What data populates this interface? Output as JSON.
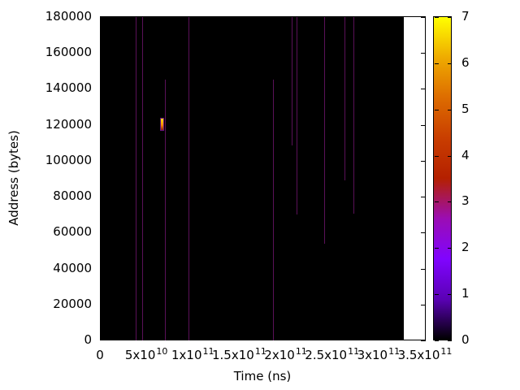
{
  "chart_data": {
    "type": "heatmap",
    "title": "",
    "xlabel": "Time (ns)",
    "ylabel": "Address (bytes)",
    "grid": false,
    "x_axis": {
      "min": 0,
      "max": 350000000000.0,
      "ticks": [
        {
          "t": 0,
          "label": "0",
          "exp": ""
        },
        {
          "t": 50000000000.0,
          "label": "5x10",
          "exp": "10"
        },
        {
          "t": 100000000000.0,
          "label": "1x10",
          "exp": "11"
        },
        {
          "t": 150000000000.0,
          "label": "1.5x10",
          "exp": "11"
        },
        {
          "t": 200000000000.0,
          "label": "2x10",
          "exp": "11"
        },
        {
          "t": 250000000000.0,
          "label": "2.5x10",
          "exp": "11"
        },
        {
          "t": 300000000000.0,
          "label": "3x10",
          "exp": "11"
        },
        {
          "t": 350000000000.0,
          "label": "3.5x10",
          "exp": "11"
        }
      ]
    },
    "y_axis": {
      "min": 0,
      "max": 180000,
      "ticks": [
        {
          "a": 0,
          "label": "0"
        },
        {
          "a": 20000,
          "label": "20000"
        },
        {
          "a": 40000,
          "label": "40000"
        },
        {
          "a": 60000,
          "label": "60000"
        },
        {
          "a": 80000,
          "label": "80000"
        },
        {
          "a": 100000,
          "label": "100000"
        },
        {
          "a": 120000,
          "label": "120000"
        },
        {
          "a": 140000,
          "label": "140000"
        },
        {
          "a": 160000,
          "label": "160000"
        },
        {
          "a": 180000,
          "label": "180000"
        }
      ]
    },
    "colorbar": {
      "min": 0,
      "max": 7,
      "ticks": [
        {
          "v": 0,
          "label": "0"
        },
        {
          "v": 1,
          "label": "1"
        },
        {
          "v": 2,
          "label": "2"
        },
        {
          "v": 3,
          "label": "3"
        },
        {
          "v": 4,
          "label": "4"
        },
        {
          "v": 5,
          "label": "5"
        },
        {
          "v": 6,
          "label": "6"
        },
        {
          "v": 7,
          "label": "7"
        }
      ],
      "palette": [
        {
          "pos": 0,
          "color": "#000000"
        },
        {
          "pos": 0.125,
          "color": "#5a01b4"
        },
        {
          "pos": 0.25,
          "color": "#8004ff"
        },
        {
          "pos": 0.375,
          "color": "#9b0db4"
        },
        {
          "pos": 0.5,
          "color": "#b42000"
        },
        {
          "pos": 0.625,
          "color": "#c93e00"
        },
        {
          "pos": 0.75,
          "color": "#dd6c00"
        },
        {
          "pos": 0.875,
          "color": "#efab00"
        },
        {
          "pos": 1,
          "color": "#ffff00"
        }
      ]
    },
    "background_value": 0,
    "background_color": "#000000",
    "data_extent_ns": 327250000000.0,
    "event_color": "#5a1158",
    "events": [
      {
        "t": 37600000000.0,
        "addr_lo": 0,
        "addr_hi": 180000,
        "value": 1
      },
      {
        "t": 44600000000.0,
        "addr_lo": 0,
        "addr_hi": 180000,
        "value": 1
      },
      {
        "t": 69100000000.0,
        "addr_lo": 0,
        "addr_hi": 145000,
        "value": 1
      },
      {
        "t": 94500000000.0,
        "addr_lo": 0,
        "addr_hi": 180000,
        "value": 1
      },
      {
        "t": 185500000000.0,
        "addr_lo": 0,
        "addr_hi": 145000,
        "value": 1
      },
      {
        "t": 205600000000.0,
        "addr_lo": 108500,
        "addr_hi": 180000,
        "value": 1
      },
      {
        "t": 210900000000.0,
        "addr_lo": 70000,
        "addr_hi": 180000,
        "value": 1
      },
      {
        "t": 240600000000.0,
        "addr_lo": 54000,
        "addr_hi": 180000,
        "value": 1
      },
      {
        "t": 262500000000.0,
        "addr_lo": 89000,
        "addr_hi": 180000,
        "value": 1
      },
      {
        "t": 272100000000.0,
        "addr_lo": 70500,
        "addr_hi": 180000,
        "value": 1
      }
    ],
    "hotspot": {
      "t": 66800000000.0,
      "addr_lo": 117000,
      "addr_hi": 123500,
      "value": 7,
      "colors": [
        "#ffe600",
        "#ff9000",
        "#8c2500"
      ]
    }
  }
}
